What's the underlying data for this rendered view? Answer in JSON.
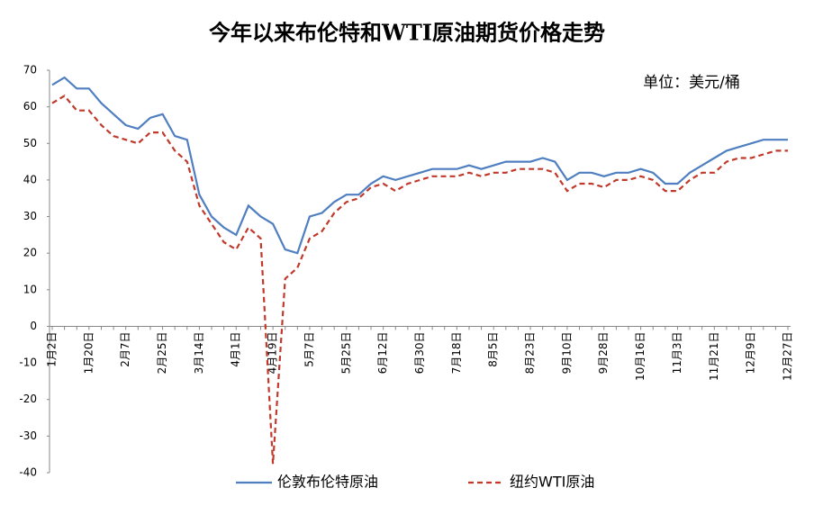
{
  "chart_data": {
    "type": "line",
    "title": "今年以来布伦特和WTI原油期货价格走势",
    "unit_note": "单位：美元/桶",
    "categories": [
      "1月2日",
      null,
      null,
      "1月20日",
      null,
      null,
      "2月7日",
      null,
      null,
      "2月25日",
      null,
      null,
      "3月14日",
      null,
      null,
      "4月1日",
      null,
      null,
      "4月19日",
      null,
      null,
      "5月7日",
      null,
      null,
      "5月25日",
      null,
      null,
      "6月12日",
      null,
      null,
      "6月30日",
      null,
      null,
      "7月18日",
      null,
      null,
      "8月5日",
      null,
      null,
      "8月23日",
      null,
      null,
      "9月10日",
      null,
      null,
      "9月28日",
      null,
      null,
      "10月16日",
      null,
      null,
      "11月3日",
      null,
      null,
      "11月21日",
      null,
      null,
      "12月9日",
      null,
      null,
      "12月27日"
    ],
    "series": [
      {
        "name": "伦敦布伦特原油",
        "color": "#4f7fc0",
        "dash": false,
        "values": [
          66,
          68,
          65,
          65,
          61,
          58,
          55,
          54,
          57,
          58,
          52,
          51,
          36,
          30,
          27,
          25,
          33,
          30,
          28,
          21,
          20,
          30,
          31,
          34,
          36,
          36,
          39,
          41,
          40,
          41,
          42,
          43,
          43,
          43,
          44,
          43,
          44,
          45,
          45,
          45,
          46,
          45,
          40,
          42,
          42,
          41,
          42,
          42,
          43,
          42,
          39,
          39,
          42,
          44,
          46,
          48,
          49,
          50,
          51,
          51,
          51
        ]
      },
      {
        "name": "纽约WTI原油",
        "color": "#c0392b",
        "dash": true,
        "values": [
          61,
          63,
          59,
          59,
          55,
          52,
          51,
          50,
          53,
          53,
          48,
          45,
          33,
          28,
          23,
          21,
          27,
          24,
          -37.6,
          13,
          16,
          24,
          26,
          31,
          34,
          35,
          38,
          39,
          37,
          39,
          40,
          41,
          41,
          41,
          42,
          41,
          42,
          42,
          43,
          43,
          43,
          42,
          37,
          39,
          39,
          38,
          40,
          40,
          41,
          40,
          37,
          37,
          40,
          42,
          42,
          45,
          46,
          46,
          47,
          48,
          48
        ]
      }
    ],
    "ylim": [
      -40,
      70
    ],
    "yticks": [
      -40,
      -30,
      -20,
      -10,
      0,
      10,
      20,
      30,
      40,
      50,
      60,
      70
    ],
    "grid": false
  }
}
